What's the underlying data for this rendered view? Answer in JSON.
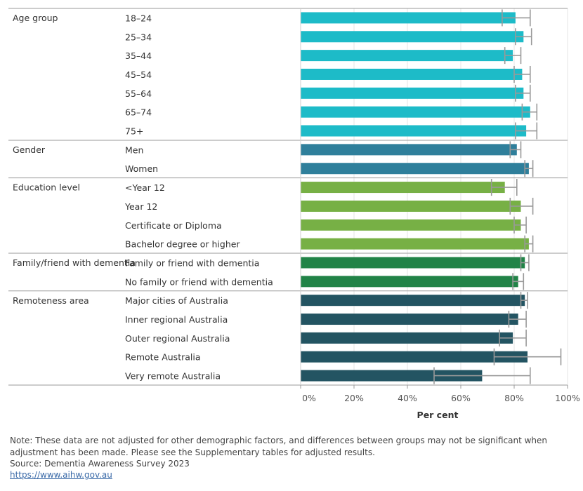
{
  "chart_data": {
    "type": "bar",
    "orientation": "horizontal",
    "groups": [
      {
        "label": "Age group",
        "color": "#1dbbc8",
        "rows": [
          {
            "category": "18–24",
            "value": 80.5,
            "ci_low": 75.5,
            "ci_high": 86.0
          },
          {
            "category": "25–34",
            "value": 83.5,
            "ci_low": 80.5,
            "ci_high": 86.5
          },
          {
            "category": "35–44",
            "value": 79.5,
            "ci_low": 76.5,
            "ci_high": 82.5
          },
          {
            "category": "45–54",
            "value": 83.0,
            "ci_low": 80.0,
            "ci_high": 86.0
          },
          {
            "category": "55–64",
            "value": 83.5,
            "ci_low": 80.5,
            "ci_high": 86.0
          },
          {
            "category": "65–74",
            "value": 86.0,
            "ci_low": 83.0,
            "ci_high": 88.5
          },
          {
            "category": "75+",
            "value": 84.5,
            "ci_low": 80.5,
            "ci_high": 88.5
          }
        ]
      },
      {
        "label": "Gender",
        "color": "#2f7f9b",
        "rows": [
          {
            "category": "Men",
            "value": 81.0,
            "ci_low": 78.5,
            "ci_high": 82.5
          },
          {
            "category": "Women",
            "value": 85.5,
            "ci_low": 84.0,
            "ci_high": 87.0
          }
        ]
      },
      {
        "label": "Education level",
        "color": "#77b045",
        "rows": [
          {
            "category": "<Year 12",
            "value": 76.5,
            "ci_low": 71.5,
            "ci_high": 81.0
          },
          {
            "category": "Year 12",
            "value": 82.5,
            "ci_low": 78.5,
            "ci_high": 87.0
          },
          {
            "category": "Certificate or Diploma",
            "value": 82.5,
            "ci_low": 80.0,
            "ci_high": 84.5
          },
          {
            "category": "Bachelor degree or higher",
            "value": 85.5,
            "ci_low": 84.0,
            "ci_high": 87.0
          }
        ]
      },
      {
        "label": "Family/friend with dementia",
        "color": "#218347",
        "rows": [
          {
            "category": "Family or friend with dementia",
            "value": 84.0,
            "ci_low": 82.5,
            "ci_high": 85.5
          },
          {
            "category": "No family or friend with dementia",
            "value": 81.5,
            "ci_low": 79.5,
            "ci_high": 83.5
          }
        ]
      },
      {
        "label": "Remoteness area",
        "color": "#235462",
        "rows": [
          {
            "category": "Major cities of Australia",
            "value": 84.0,
            "ci_low": 82.5,
            "ci_high": 85.0
          },
          {
            "category": "Inner regional Australia",
            "value": 81.5,
            "ci_low": 78.0,
            "ci_high": 84.5
          },
          {
            "category": "Outer regional Australia",
            "value": 79.5,
            "ci_low": 74.5,
            "ci_high": 84.5
          },
          {
            "category": "Remote Australia",
            "value": 85.0,
            "ci_low": 72.5,
            "ci_high": 97.5
          },
          {
            "category": "Very remote Australia",
            "value": 68.0,
            "ci_low": 50.0,
            "ci_high": 86.0
          }
        ]
      }
    ],
    "xaxis": {
      "label": "Per cent",
      "range": [
        0,
        100
      ],
      "ticks": [
        0,
        20,
        40,
        60,
        80,
        100
      ],
      "tick_labels": [
        "0%",
        "20%",
        "40%",
        "60%",
        "80%",
        "100%"
      ]
    },
    "gridlines": true,
    "error_bar_color": "#999999"
  },
  "footer": {
    "note": "Note: These data are not adjusted for other demographic factors, and differences between groups may not be significant when adjustment has been made. Please see the Supplementary tables for adjusted results.",
    "source": "Source: Dementia Awareness Survey 2023",
    "link": "https://www.aihw.gov.au"
  }
}
